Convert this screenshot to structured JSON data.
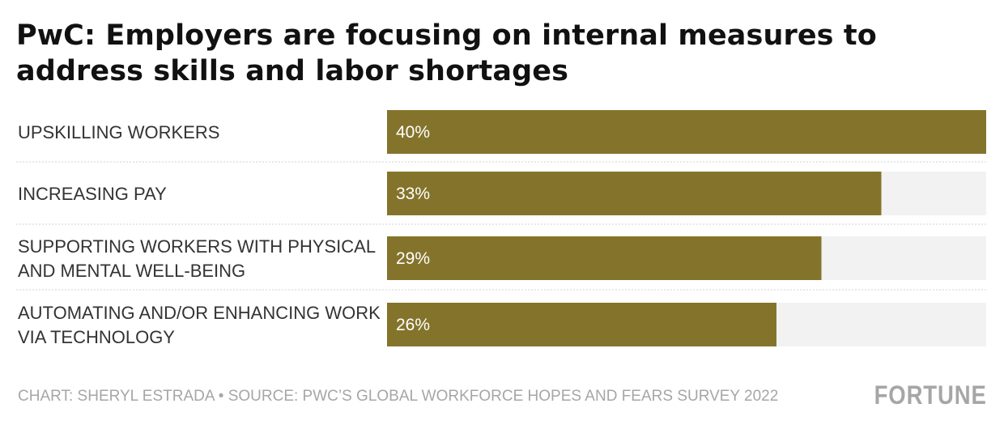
{
  "title": "PwC: Employers are focusing on internal measures to address skills and labor shortages",
  "footer": {
    "credit": "CHART: SHERYL ESTRADA • SOURCE: PWC’S GLOBAL WORKFORCE HOPES AND FEARS SURVEY 2022",
    "brand": "FORTUNE"
  },
  "colors": {
    "bar": "#84742b",
    "track": "#f2f2f2",
    "value_text": "#ffffff",
    "category_text": "#333333",
    "footer_text": "#a6a6a6",
    "divider": "#d0d0d0"
  },
  "chart_data": {
    "type": "bar",
    "orientation": "horizontal",
    "title": "PwC: Employers are focusing on internal measures to address skills and labor shortages",
    "categories": [
      [
        "UPSKILLING WORKERS"
      ],
      [
        "INCREASING PAY"
      ],
      [
        "SUPPORTING WORKERS WITH PHYSICAL",
        "AND MENTAL WELL-BEING"
      ],
      [
        "AUTOMATING AND/OR ENHANCING WORK",
        "VIA TECHNOLOGY"
      ]
    ],
    "values": [
      40,
      33,
      29,
      26
    ],
    "value_labels": [
      "40%",
      "33%",
      "29%",
      "26%"
    ],
    "xlim": [
      0,
      40
    ],
    "unit": "%",
    "grid": false,
    "legend": "none"
  }
}
